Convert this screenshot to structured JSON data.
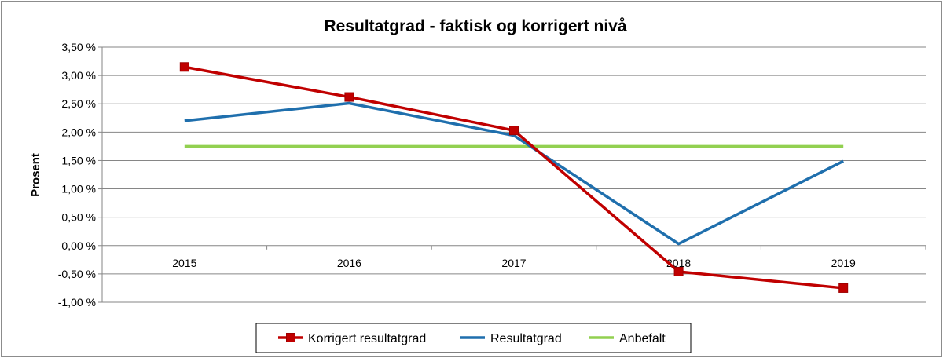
{
  "chart_data": {
    "type": "line",
    "title": "Resultatgrad - faktisk og korrigert nivå",
    "ylabel": "Prosent",
    "xlabel": "",
    "categories": [
      "2015",
      "2016",
      "2017",
      "2018",
      "2019"
    ],
    "y_ticks": [
      3.5,
      3.0,
      2.5,
      2.0,
      1.5,
      1.0,
      0.5,
      0.0,
      -0.5,
      -1.0
    ],
    "y_tick_labels": [
      "3,50 %",
      "3,00 %",
      "2,50 %",
      "2,00 %",
      "1,50 %",
      "1,00 %",
      "0,50 %",
      "0,00 %",
      "-0,50 %",
      "-1,00 %"
    ],
    "ylim": [
      -1.0,
      3.5
    ],
    "grid": true,
    "legend_position": "bottom",
    "series": [
      {
        "name": "Korrigert resultatgrad",
        "values": [
          3.15,
          2.62,
          2.03,
          -0.46,
          -0.75
        ],
        "color": "#c00000",
        "marker": "square"
      },
      {
        "name": "Resultatgrad",
        "values": [
          2.2,
          2.51,
          1.94,
          0.03,
          1.49
        ],
        "color": "#1f6fad",
        "marker": "none"
      },
      {
        "name": "Anbefalt",
        "values": [
          1.75,
          1.75,
          1.75,
          1.75,
          1.75
        ],
        "color": "#92d050",
        "marker": "none"
      }
    ]
  }
}
